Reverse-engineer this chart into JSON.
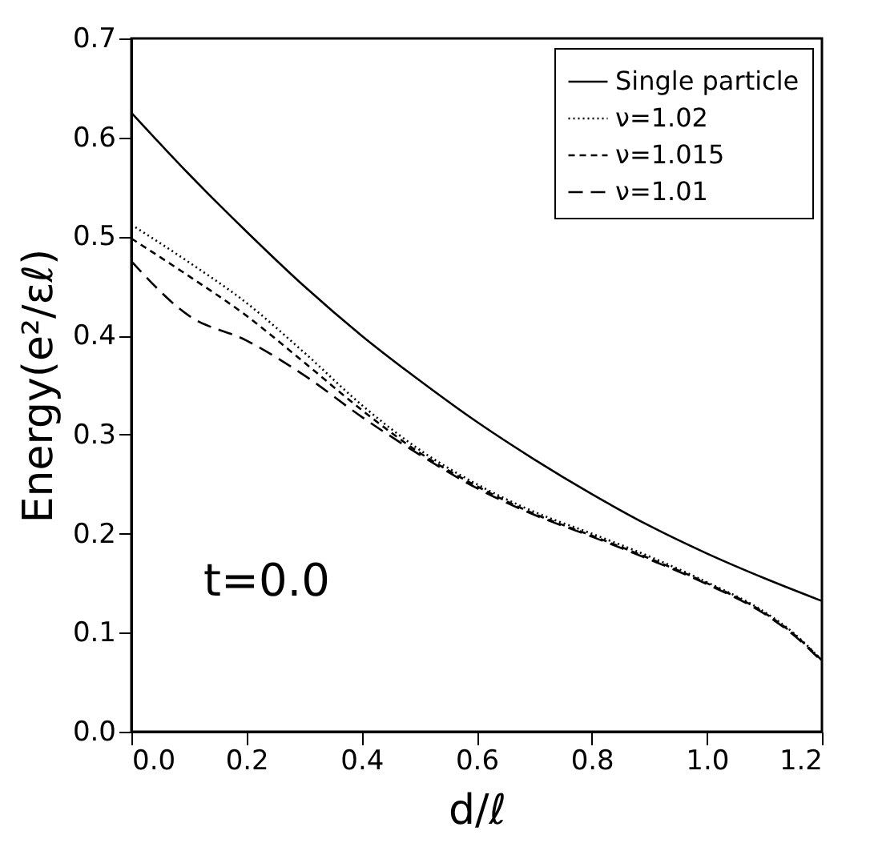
{
  "chart_data": {
    "type": "line",
    "xlabel": "d/ℓ",
    "ylabel": "Energy(e²/εℓ)",
    "xlim": [
      0,
      1.2
    ],
    "ylim": [
      0,
      0.7
    ],
    "xticks": [
      {
        "value": 0,
        "label": "0.0"
      },
      0.2,
      0.4,
      0.6,
      0.8,
      {
        "value": 1.0,
        "label": "1.0"
      },
      1.2
    ],
    "yticks": [
      {
        "value": 0,
        "label": "0.0"
      },
      0.1,
      0.2,
      0.3,
      0.4,
      0.5,
      0.6,
      0.7
    ],
    "grid": false,
    "legend": "top right",
    "annotations": [
      "t=0.0"
    ],
    "series": [
      {
        "name": "Single particle",
        "color": "#000000",
        "line_style": "solid",
        "x": [
          0,
          0.1,
          0.2,
          0.3,
          0.4,
          0.5,
          0.6,
          0.7,
          0.8,
          0.9,
          1.0,
          1.1,
          1.2
        ],
        "values": [
          0.625,
          0.563,
          0.505,
          0.45,
          0.4,
          0.355,
          0.313,
          0.275,
          0.24,
          0.208,
          0.18,
          0.155,
          0.132
        ]
      },
      {
        "name": "ν=1.02",
        "color": "#000000",
        "line_style": "dotted",
        "x": [
          0,
          0.1,
          0.2,
          0.3,
          0.4,
          0.5,
          0.6,
          0.7,
          0.8,
          0.9,
          1.0,
          1.1,
          1.15,
          1.2
        ],
        "values": [
          0.512,
          0.474,
          0.433,
          0.383,
          0.33,
          0.285,
          0.25,
          0.222,
          0.2,
          0.177,
          0.151,
          0.121,
          0.1,
          0.072
        ]
      },
      {
        "name": "ν=1.015",
        "color": "#000000",
        "line_style": "dashed",
        "x": [
          0,
          0.1,
          0.2,
          0.3,
          0.4,
          0.5,
          0.6,
          0.7,
          0.8,
          0.9,
          1.0,
          1.1,
          1.15,
          1.2
        ],
        "values": [
          0.498,
          0.46,
          0.42,
          0.373,
          0.325,
          0.282,
          0.248,
          0.22,
          0.198,
          0.175,
          0.15,
          0.12,
          0.099,
          0.072
        ]
      },
      {
        "name": "ν=1.01",
        "color": "#000000",
        "line_style": "dashed",
        "x": [
          0,
          0.1,
          0.2,
          0.3,
          0.4,
          0.5,
          0.6,
          0.7,
          0.8,
          0.9,
          1.0,
          1.1,
          1.15,
          1.2
        ],
        "values": [
          0.475,
          0.42,
          0.395,
          0.36,
          0.318,
          0.28,
          0.246,
          0.219,
          0.197,
          0.174,
          0.149,
          0.119,
          0.098,
          0.071
        ]
      }
    ]
  }
}
